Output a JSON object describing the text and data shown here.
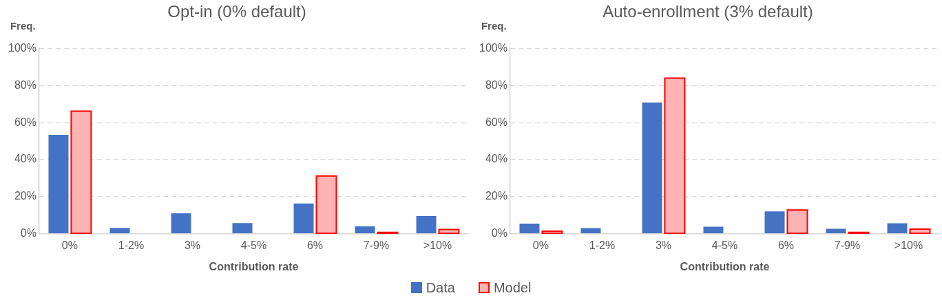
{
  "chart_data": [
    {
      "type": "bar",
      "title": "Opt-in (0% default)",
      "xlabel": "Contribution rate",
      "ylabel": "Freq.",
      "categories": [
        "0%",
        "1-2%",
        "3%",
        "4-5%",
        "6%",
        "7-9%",
        ">10%"
      ],
      "series": [
        {
          "name": "Data",
          "color": "#4472c4",
          "values": [
            53.4,
            3.1,
            11.0,
            5.7,
            16.3,
            3.9,
            9.5
          ]
        },
        {
          "name": "Model",
          "color": "#ffb3b3",
          "values": [
            66.3,
            null,
            null,
            null,
            31.2,
            0.7,
            2.3
          ]
        }
      ],
      "ylim": [
        0,
        100
      ],
      "yticks": [
        {
          "value": 0,
          "label": "0%"
        },
        {
          "value": 20,
          "label": "20%"
        },
        {
          "value": 40,
          "label": "40%"
        },
        {
          "value": 60,
          "label": "60%"
        },
        {
          "value": 80,
          "label": "80%"
        },
        {
          "value": 100,
          "label": "100%"
        }
      ],
      "grid": "y",
      "legend": "bottom"
    },
    {
      "type": "bar",
      "title": "Auto-enrollment (3% default)",
      "xlabel": "Contribution rate",
      "ylabel": "Freq.",
      "categories": [
        "0%",
        "1-2%",
        "3%",
        "4-5%",
        "6%",
        "7-9%",
        ">10%"
      ],
      "series": [
        {
          "name": "Data",
          "color": "#4472c4",
          "values": [
            5.4,
            3.0,
            70.9,
            3.8,
            12.0,
            2.6,
            5.6
          ]
        },
        {
          "name": "Model",
          "color": "#ffb3b3",
          "values": [
            1.3,
            null,
            84.1,
            null,
            12.8,
            0.7,
            2.5
          ]
        }
      ],
      "ylim": [
        0,
        100
      ],
      "yticks": [
        {
          "value": 0,
          "label": "0%"
        },
        {
          "value": 20,
          "label": "20%"
        },
        {
          "value": 40,
          "label": "40%"
        },
        {
          "value": 60,
          "label": "60%"
        },
        {
          "value": 80,
          "label": "80%"
        },
        {
          "value": 100,
          "label": "100%"
        }
      ],
      "grid": "y",
      "legend": "bottom"
    }
  ]
}
